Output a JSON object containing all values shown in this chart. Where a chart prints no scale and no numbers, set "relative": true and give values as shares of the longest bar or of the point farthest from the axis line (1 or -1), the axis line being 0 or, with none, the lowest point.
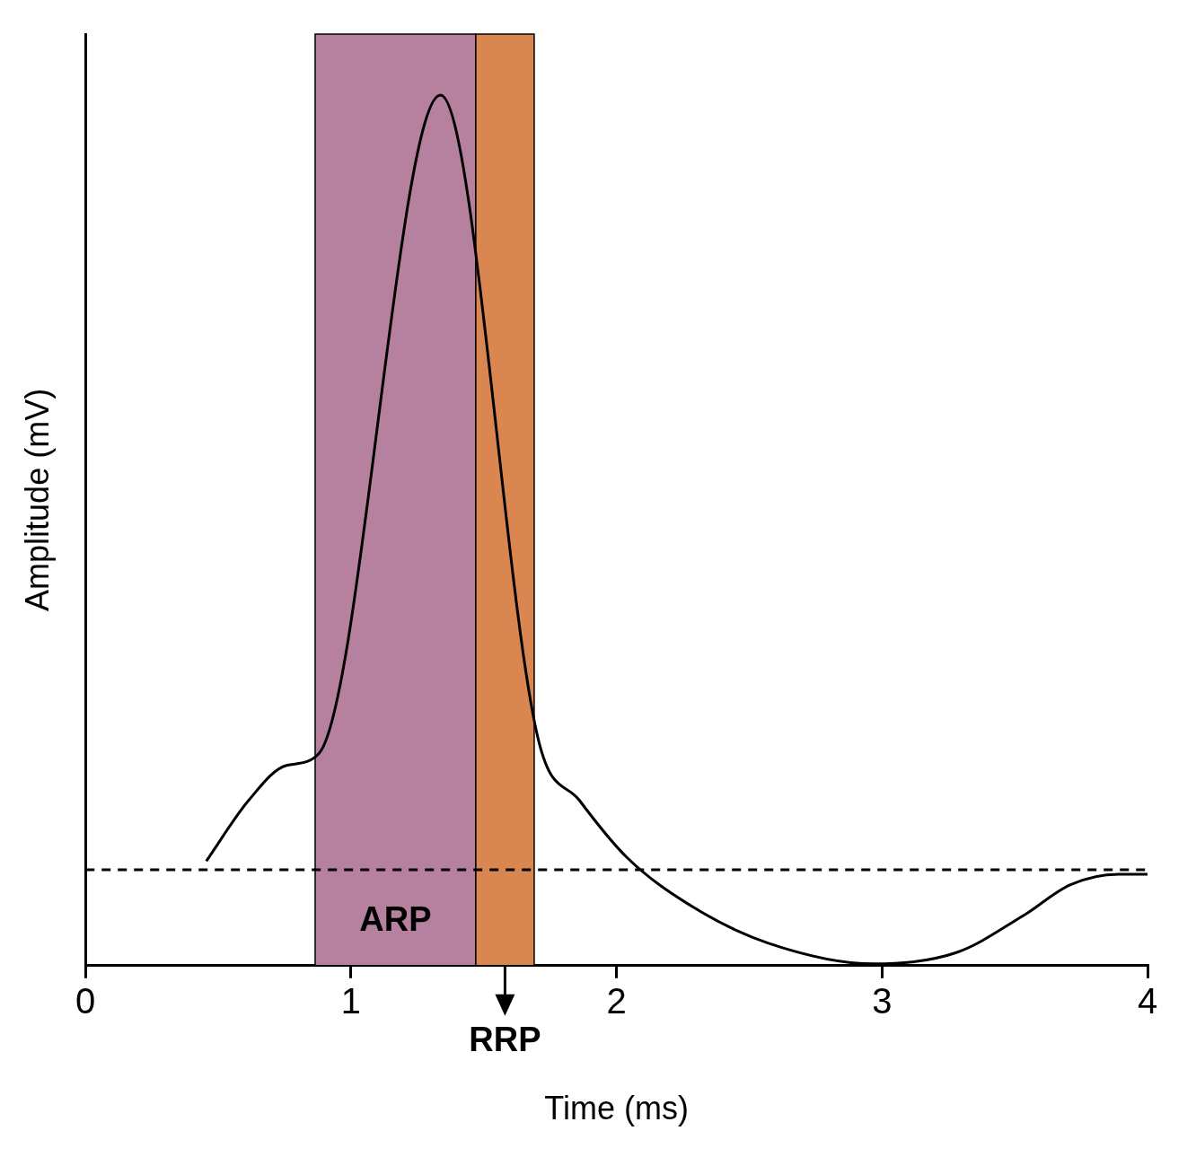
{
  "chart_data": {
    "type": "line",
    "xlabel": "Time (ms)",
    "ylabel": "Amplitude (mV)",
    "relative": true,
    "xlim": [
      0,
      4
    ],
    "xticks": [
      0,
      1,
      2,
      3,
      4
    ],
    "grid": false,
    "marker": "none",
    "series": [
      {
        "color": "#000000",
        "x": [
          0.455,
          0.615,
          0.757,
          0.88,
          1.337,
          1.707,
          1.86,
          2.04,
          2.29,
          2.57,
          2.97,
          3.28,
          3.53,
          3.71,
          3.89,
          4
        ],
        "values": [
          0.12,
          0.19,
          0.23,
          0.244,
          1,
          0.258,
          0.19,
          0.124,
          0.067,
          0.026,
          0.002,
          0.015,
          0.057,
          0.093,
          0.105,
          0.105
        ]
      }
    ],
    "ref_lines": [
      {
        "axis": "y",
        "value": 0.11,
        "color": "#000000",
        "line_style": "dashed"
      }
    ],
    "bands": [
      {
        "axis": "x",
        "from": 0.865,
        "to": 1.47,
        "label": "ARP",
        "color": "#b5819f"
      },
      {
        "axis": "x",
        "from": 1.47,
        "to": 1.69,
        "label": "RRP",
        "color": "#d98650"
      }
    ]
  }
}
